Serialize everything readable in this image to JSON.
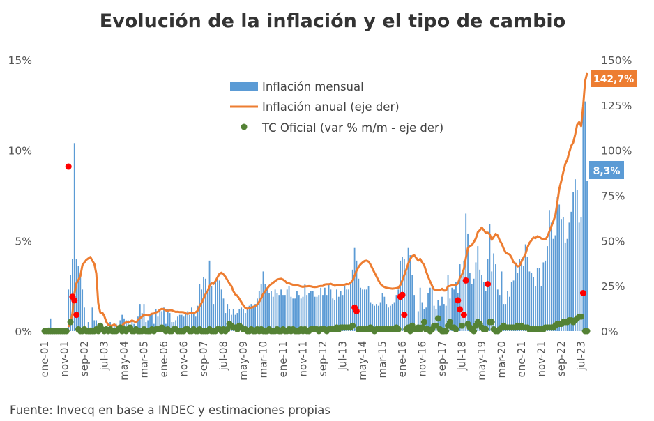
{
  "chart_data": {
    "type": "bar+line+scatter",
    "title": "Evolución de la inflación y el tipo de cambio",
    "source": "Fuente: Invecq en base a INDEC y estimaciones propias",
    "x_start": "ene-01",
    "x_end": "oct-23",
    "x_frequency": "monthly",
    "x_tick_labels": [
      "ene-01",
      "nov-01",
      "sep-02",
      "jul-03",
      "may-04",
      "mar-05",
      "ene-06",
      "nov-06",
      "sep-07",
      "jul-08",
      "may-09",
      "mar-10",
      "ene-11",
      "nov-11",
      "sep-12",
      "jul-13",
      "may-14",
      "mar-15",
      "ene-16",
      "nov-16",
      "sep-17",
      "jul-18",
      "may-19",
      "mar-20",
      "ene-21",
      "nov-21",
      "sep-22",
      "jul-23"
    ],
    "y_left": {
      "ticks": [
        "0%",
        "5%",
        "10%",
        "15%"
      ],
      "range": [
        0,
        15
      ]
    },
    "y_right": {
      "ticks": [
        "0%",
        "25%",
        "50%",
        "75%",
        "100%",
        "125%",
        "150%"
      ],
      "range": [
        0,
        150
      ]
    },
    "legend": {
      "placement": "top-center",
      "entries": [
        "Inflación mensual",
        "Inflación anual (eje der)",
        "TC Oficial (var % m/m - eje der)"
      ]
    },
    "callouts": {
      "annual_last": "142,7%",
      "monthly_last": "8,3%"
    },
    "colors": {
      "monthly": "#5b9bd5",
      "annual": "#ed7d31",
      "tc": "#548235",
      "tc_high": "#ff0000"
    },
    "tc_high_threshold": 9,
    "grid": false,
    "series": [
      {
        "name": "Inflación mensual",
        "axis": "left",
        "type": "bar",
        "values": [
          0,
          0,
          0.2,
          0.7,
          0.1,
          0,
          0,
          0,
          0,
          0,
          0,
          0,
          2.3,
          3.1,
          4.0,
          10.4,
          4.0,
          3.6,
          3.2,
          2.3,
          1.3,
          0.2,
          0.5,
          0.2,
          1.3,
          0.6,
          0.6,
          0.1,
          0,
          0,
          0.1,
          0,
          0,
          0.5,
          0.2,
          0.3,
          0.4,
          0.1,
          0.6,
          0.9,
          0.7,
          0.6,
          0.6,
          0.3,
          0.6,
          0.4,
          0.2,
          0.8,
          1.5,
          1.0,
          1.5,
          0.5,
          0.6,
          0.9,
          1.0,
          0.4,
          1.2,
          0.8,
          1.2,
          1.1,
          1.3,
          0.4,
          1.2,
          1.0,
          0.5,
          0.5,
          0.6,
          0.8,
          0.9,
          0.9,
          0.8,
          1.0,
          1.1,
          0.9,
          1.3,
          1.0,
          0.8,
          1.4,
          2.6,
          2.3,
          3.0,
          2.9,
          2.2,
          3.9,
          2.5,
          1.5,
          2.8,
          2.9,
          2.8,
          2.3,
          1.8,
          1.0,
          1.5,
          1.2,
          0.9,
          1.2,
          0.9,
          1.0,
          1.2,
          1.3,
          1.2,
          1.0,
          1.3,
          1.4,
          1.5,
          1.4,
          1.5,
          1.8,
          2.2,
          2.6,
          3.3,
          2.6,
          2.4,
          2.1,
          2.2,
          1.9,
          2.3,
          2.1,
          2.0,
          2.3,
          2.0,
          2.0,
          2.3,
          2.5,
          1.9,
          1.8,
          1.8,
          2.2,
          2.0,
          1.8,
          1.9,
          2.6,
          2.0,
          2.1,
          2.2,
          2.2,
          1.9,
          1.9,
          2.0,
          2.4,
          2.0,
          2.4,
          2.0,
          2.6,
          2.3,
          1.8,
          1.7,
          2.3,
          1.9,
          2.2,
          2.0,
          2.5,
          2.3,
          2.3,
          2.7,
          3.4,
          4.6,
          3.9,
          2.9,
          2.4,
          2.3,
          2.3,
          2.3,
          2.5,
          1.6,
          1.5,
          1.4,
          1.5,
          1.4,
          1.6,
          2.1,
          1.9,
          1.5,
          1.3,
          1.4,
          1.5,
          1.6,
          2.0,
          2.3,
          3.9,
          4.1,
          4.0,
          3.3,
          4.6,
          4.2,
          3.1,
          2.0,
          0.2,
          1.1,
          2.4,
          1.6,
          1.2,
          1.3,
          2.1,
          2.4,
          2.6,
          1.4,
          1.2,
          1.7,
          1.4,
          1.9,
          1.5,
          1.4,
          3.1,
          1.8,
          2.4,
          2.3,
          2.7,
          2.1,
          3.7,
          3.1,
          3.9,
          6.5,
          5.4,
          3.2,
          2.6,
          2.9,
          3.8,
          4.7,
          3.4,
          3.1,
          2.7,
          2.2,
          4.0,
          5.9,
          3.3,
          4.3,
          3.7,
          2.3,
          2.0,
          3.3,
          1.5,
          1.5,
          2.2,
          1.9,
          2.7,
          2.8,
          3.8,
          3.2,
          4.0,
          4.0,
          3.6,
          4.8,
          4.1,
          3.3,
          3.2,
          3.0,
          2.5,
          3.5,
          3.5,
          2.5,
          3.8,
          3.9,
          4.7,
          6.7,
          6.0,
          5.1,
          5.3,
          7.4,
          7.0,
          6.2,
          6.3,
          4.9,
          5.1,
          6.0,
          6.6,
          7.7,
          8.4,
          7.8,
          6.0,
          6.3,
          12.4,
          12.7,
          8.3
        ]
      },
      {
        "name": "Inflación anual (eje der)",
        "axis": "right",
        "type": "line",
        "values": [
          null,
          null,
          null,
          null,
          null,
          null,
          null,
          null,
          null,
          null,
          null,
          null,
          2.3,
          5.5,
          9.7,
          21.1,
          26.5,
          28.4,
          30.5,
          36.5,
          38.0,
          39.4,
          40.2,
          41.0,
          39.0,
          37.2,
          31.8,
          15.5,
          10.2,
          10.2,
          8.4,
          5.2,
          3.5,
          3.1,
          3.0,
          3.7,
          2.9,
          2.3,
          2.5,
          3.1,
          4.3,
          4.9,
          4.9,
          5.3,
          5.9,
          5.4,
          4.8,
          6.1,
          7.2,
          8.0,
          9.1,
          8.8,
          8.6,
          9.0,
          9.6,
          9.7,
          10.3,
          10.7,
          11.8,
          12.3,
          12.1,
          11.5,
          11.1,
          11.6,
          11.5,
          11.0,
          10.6,
          10.7,
          10.5,
          10.5,
          10.4,
          9.8,
          9.5,
          9.9,
          10.0,
          10.0,
          10.4,
          11.3,
          13.8,
          15.6,
          18.0,
          20.5,
          22.0,
          25.0,
          26.5,
          26.1,
          27.7,
          29.8,
          31.7,
          32.3,
          31.4,
          30.0,
          28.2,
          26.3,
          24.9,
          22.0,
          20.2,
          19.6,
          17.8,
          16.0,
          14.2,
          12.8,
          12.3,
          12.8,
          13.0,
          13.3,
          13.9,
          14.7,
          16.3,
          18.2,
          20.6,
          22.1,
          23.6,
          25.0,
          26.0,
          26.8,
          27.6,
          28.5,
          28.8,
          29.0,
          28.5,
          27.7,
          26.5,
          26.5,
          26.0,
          25.6,
          25.2,
          25.5,
          25.1,
          24.7,
          24.5,
          24.8,
          24.8,
          24.9,
          24.8,
          24.5,
          24.4,
          24.5,
          24.8,
          25.0,
          25.0,
          25.8,
          25.9,
          25.9,
          26.2,
          25.7,
          25.1,
          25.3,
          25.3,
          25.6,
          25.6,
          25.7,
          26.1,
          25.9,
          26.8,
          27.9,
          30.7,
          33.4,
          35.5,
          37.0,
          38.0,
          38.8,
          39.0,
          38.5,
          36.8,
          34.5,
          32.3,
          30.2,
          28.0,
          26.2,
          25.0,
          24.4,
          24.0,
          23.8,
          23.6,
          23.5,
          23.6,
          23.8,
          24.0,
          25.5,
          28.0,
          31.0,
          34.0,
          37.5,
          40.0,
          41.5,
          42.0,
          40.5,
          39.0,
          40.0,
          38.0,
          36.5,
          33.0,
          30.0,
          27.5,
          25.0,
          23.0,
          22.9,
          22.6,
          22.6,
          23.4,
          22.4,
          22.5,
          24.8,
          25.0,
          25.4,
          25.4,
          25.5,
          26.3,
          29.5,
          31.2,
          34.4,
          40.5,
          45.9,
          47.0,
          47.6,
          49.3,
          51.3,
          54.7,
          55.8,
          57.3,
          55.8,
          54.4,
          54.5,
          53.5,
          50.5,
          52.1,
          53.8,
          52.9,
          50.3,
          48.4,
          45.6,
          43.4,
          42.8,
          42.4,
          40.7,
          38.0,
          37.2,
          35.8,
          36.1,
          38.5,
          40.7,
          42.6,
          46.3,
          48.8,
          50.2,
          51.8,
          51.4,
          52.5,
          52.1,
          51.2,
          50.9,
          50.7,
          52.3,
          55.1,
          58.0,
          60.7,
          64.0,
          71.0,
          78.5,
          83.0,
          88.0,
          92.4,
          94.8,
          98.8,
          102.5,
          104.3,
          108.8,
          114.2,
          115.6,
          113.4,
          124.4,
          138.3,
          142.7
        ]
      },
      {
        "name": "TC Oficial (var % m/m - eje der)",
        "axis": "right",
        "type": "scatter",
        "values": [
          0,
          0,
          0,
          0,
          0,
          0,
          0,
          0,
          0,
          0,
          0,
          0,
          91,
          5,
          19,
          17,
          9,
          1,
          0,
          0,
          1,
          0,
          0,
          0,
          0,
          0,
          1,
          0,
          3,
          1,
          0,
          1,
          0,
          1,
          0,
          0,
          0,
          1,
          2,
          0,
          1,
          0,
          1,
          2,
          0,
          0,
          1,
          0,
          0,
          0,
          1,
          0,
          0,
          0,
          1,
          0,
          1,
          1,
          1,
          2,
          1,
          0,
          1,
          0,
          0,
          1,
          1,
          0,
          0,
          0,
          0,
          1,
          1,
          0,
          0,
          1,
          0,
          0,
          1,
          0,
          0,
          0,
          0,
          1,
          0,
          0,
          0,
          1,
          1,
          0,
          1,
          0,
          1,
          4,
          3,
          2,
          2,
          1,
          3,
          2,
          1,
          1,
          0,
          0,
          1,
          0,
          0,
          1,
          0,
          1,
          0,
          0,
          0,
          1,
          0,
          0,
          0,
          1,
          0,
          0,
          1,
          0,
          0,
          1,
          0,
          1,
          0,
          0,
          0,
          1,
          0,
          1,
          0,
          0,
          1,
          1,
          1,
          1,
          0,
          1,
          1,
          1,
          0,
          1,
          1,
          1,
          1,
          2,
          1,
          2,
          2,
          2,
          2,
          2,
          2,
          3,
          13,
          11,
          1,
          1,
          1,
          1,
          1,
          1,
          2,
          1,
          0,
          1,
          1,
          1,
          1,
          1,
          1,
          1,
          1,
          1,
          1,
          2,
          1,
          19,
          20,
          9,
          1,
          2,
          0,
          3,
          1,
          1,
          2,
          1,
          2,
          5,
          1,
          1,
          0,
          1,
          3,
          3,
          7,
          1,
          0,
          0,
          0,
          3,
          5,
          2,
          2,
          1,
          17,
          12,
          3,
          9,
          28,
          4,
          2,
          1,
          0,
          3,
          5,
          4,
          2,
          1,
          1,
          26,
          5,
          5,
          1,
          0,
          0,
          1,
          2,
          3,
          2,
          2,
          2,
          2,
          2,
          2,
          3,
          2,
          3,
          2,
          2,
          2,
          1,
          1,
          1,
          1,
          1,
          1,
          1,
          1,
          2,
          2,
          2,
          2,
          2,
          3,
          4,
          4,
          4,
          5,
          5,
          5,
          6,
          6,
          5,
          6,
          7,
          8,
          8,
          21,
          0,
          0
        ]
      }
    ]
  }
}
